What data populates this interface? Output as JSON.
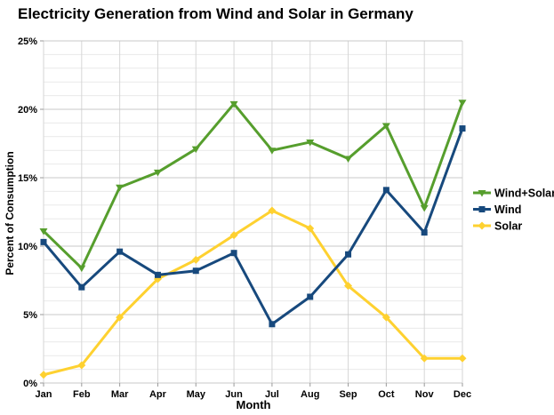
{
  "title": "Electricity Generation from Wind and Solar in Germany",
  "chart_data": {
    "type": "line",
    "x": [
      "Jan",
      "Feb",
      "Mar",
      "Apr",
      "May",
      "Jun",
      "Jul",
      "Aug",
      "Sep",
      "Oct",
      "Nov",
      "Dec"
    ],
    "series": [
      {
        "name": "Wind+Solar",
        "marker": "triangle-down",
        "color": "#569e2d",
        "values": [
          11.1,
          8.4,
          14.3,
          15.4,
          17.1,
          20.4,
          17.0,
          17.6,
          16.4,
          18.8,
          12.8,
          20.5
        ]
      },
      {
        "name": "Wind",
        "marker": "square",
        "color": "#17497d",
        "values": [
          10.3,
          7.0,
          9.6,
          7.9,
          8.2,
          9.5,
          4.3,
          6.3,
          9.4,
          14.1,
          11.0,
          18.6
        ]
      },
      {
        "name": "Solar",
        "marker": "diamond",
        "color": "#fed130",
        "values": [
          0.6,
          1.3,
          4.8,
          7.6,
          9.0,
          10.8,
          12.6,
          11.3,
          7.1,
          4.8,
          1.8,
          1.8
        ]
      }
    ],
    "xlabel": "Month",
    "ylabel": "Percent of Consumption",
    "ylim": [
      0,
      25
    ],
    "y_ticks": [
      "0%",
      "5%",
      "10%",
      "15%",
      "20%",
      "25%"
    ],
    "grid": {
      "minor_step_pct": 1,
      "major_step_pct": 5,
      "vertical": "every-month"
    },
    "legend_position": "right"
  },
  "colors": {
    "minor_gridline": "#e9e9e9",
    "major_gridline": "#c9c9c9",
    "vertical_gridline": "#d6d6d6",
    "tick": "#9a9a9a",
    "text": "#000000",
    "background": "#ffffff"
  }
}
